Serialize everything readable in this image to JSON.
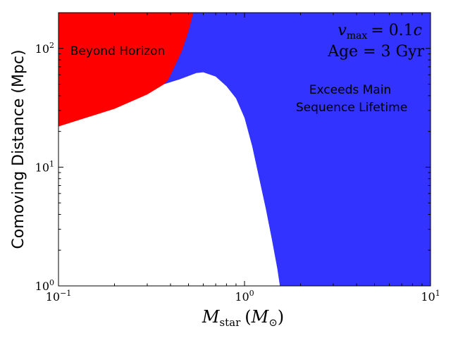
{
  "chart_data": {
    "type": "area",
    "xscale": "log",
    "yscale": "log",
    "xlim": [
      0.1,
      10
    ],
    "ylim": [
      1,
      200
    ],
    "xlabel_main": "M",
    "xlabel_sub": "star",
    "xlabel_unit_main": "M",
    "xlabel_unit_sub": "⊙",
    "ylabel": "Comoving Distance (Mpc)",
    "x_ticks": [
      {
        "value": 0.1,
        "base": "10",
        "exp": "−1"
      },
      {
        "value": 1,
        "base": "10",
        "exp": "0"
      },
      {
        "value": 10,
        "base": "10",
        "exp": "1"
      }
    ],
    "y_ticks": [
      {
        "value": 1,
        "base": "10",
        "exp": "0"
      },
      {
        "value": 10,
        "base": "10",
        "exp": "1"
      },
      {
        "value": 100,
        "base": "10",
        "exp": "2"
      }
    ],
    "annotation_vmax": {
      "lhs": "v",
      "sub": "max",
      "rhs": "= 0.1",
      "var": "c"
    },
    "annotation_age": "Age = 3 Gyr",
    "regions": [
      {
        "label": "Beyond Horizon",
        "color": "#ff0000",
        "upper_boundary": [
          [
            0.1,
            200
          ],
          [
            0.53,
            200
          ],
          [
            0.5,
            140
          ],
          [
            0.46,
            95
          ],
          [
            0.42,
            70
          ],
          [
            0.39,
            55
          ],
          [
            0.37,
            50
          ]
        ],
        "lower_boundary": [
          [
            0.1,
            22
          ],
          [
            0.2,
            31
          ],
          [
            0.3,
            41
          ],
          [
            0.37,
            50
          ]
        ]
      },
      {
        "label_lines": [
          "Exceeds Main",
          "Sequence Lifetime"
        ],
        "color": "#3333ff",
        "lower_boundary": [
          [
            0.37,
            50
          ],
          [
            0.45,
            55
          ],
          [
            0.55,
            62
          ],
          [
            0.6,
            63
          ],
          [
            0.7,
            58
          ],
          [
            0.8,
            48
          ],
          [
            0.9,
            38
          ],
          [
            1.0,
            26
          ],
          [
            1.1,
            15
          ],
          [
            1.2,
            8
          ],
          [
            1.3,
            4.5
          ],
          [
            1.4,
            2.5
          ],
          [
            1.5,
            1.4
          ],
          [
            1.55,
            1.0
          ]
        ]
      }
    ]
  }
}
